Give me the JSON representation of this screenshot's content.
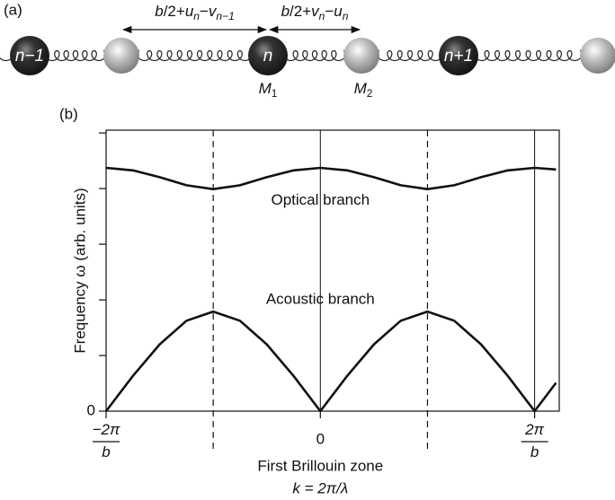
{
  "diagram": {
    "panel_label": "(a)",
    "sites": [
      "n−1",
      "n",
      "n+1"
    ],
    "arrows": [
      [
        {
          "t": "b"
        },
        {
          "t": "/2+",
          "up": true
        },
        {
          "t": "u"
        },
        {
          "t": "n",
          "sub": true
        },
        {
          "t": "−",
          "up": true
        },
        {
          "t": "v"
        },
        {
          "t": "n−1",
          "sub": true
        }
      ],
      [
        {
          "t": "b"
        },
        {
          "t": "/2+",
          "up": true
        },
        {
          "t": "v"
        },
        {
          "t": "n",
          "sub": true
        },
        {
          "t": "−",
          "up": true
        },
        {
          "t": "u"
        },
        {
          "t": "n",
          "sub": true
        }
      ]
    ],
    "masses": [
      [
        {
          "t": "M"
        },
        {
          "t": "1",
          "sub": true,
          "up": true
        }
      ],
      [
        {
          "t": "M"
        },
        {
          "t": "2",
          "sub": true,
          "up": true
        }
      ]
    ]
  },
  "chart_data": {
    "type": "line",
    "panel_label": "(b)",
    "y_label": "Frequency ω (arb. units)",
    "x_label": "First Brillouin zone",
    "x_sublabel": "k = 2π/λ",
    "xlim": [
      -2,
      2.23
    ],
    "ylim": [
      0,
      5.05
    ],
    "xticks": [
      {
        "value": -2,
        "label": "−2π/b"
      },
      0,
      {
        "value": 2,
        "label": "2π/b"
      }
    ],
    "yticks": [
      0
    ],
    "y_unlabeled_ticks": [
      1,
      2,
      3,
      4,
      5
    ],
    "zone_boundaries": [
      -1,
      1
    ],
    "vertical_lines": [
      0,
      2
    ],
    "x": [
      -2,
      -1.75,
      -1.5,
      -1.25,
      -1,
      -0.75,
      -0.5,
      -0.25,
      0,
      0.25,
      0.5,
      0.75,
      1,
      1.25,
      1.5,
      1.75,
      2,
      2.2
    ],
    "series": [
      {
        "name": "Optical branch",
        "color": "#111111",
        "values": [
          4.373,
          4.327,
          4.205,
          4.06,
          3.99,
          4.06,
          4.205,
          4.327,
          4.373,
          4.327,
          4.205,
          4.06,
          3.99,
          4.06,
          4.205,
          4.327,
          4.373,
          4.343
        ],
        "label_at": [
          0,
          3.78
        ]
      },
      {
        "name": "Acoustic branch",
        "color": "#111111",
        "values": [
          0,
          0.632,
          1.2,
          1.624,
          1.789,
          1.624,
          1.2,
          0.632,
          0,
          0.632,
          1.2,
          1.624,
          1.789,
          1.624,
          1.2,
          0.632,
          0,
          0.508
        ],
        "label_at": [
          0,
          2.0
        ]
      }
    ]
  }
}
